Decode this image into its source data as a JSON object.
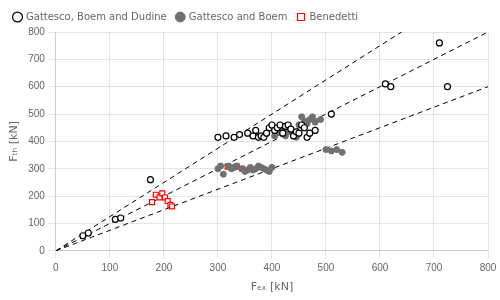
{
  "chart_data": {
    "type": "scatter",
    "title": "",
    "xlabel": "Fₑₓ [kN]",
    "ylabel": "Fₜₕ [kN]",
    "xlim": [
      0,
      800
    ],
    "ylim": [
      0,
      800
    ],
    "xticks": [
      0,
      100,
      200,
      300,
      400,
      500,
      600,
      700,
      800
    ],
    "yticks": [
      0,
      100,
      200,
      300,
      400,
      500,
      600,
      700,
      800
    ],
    "grid": true,
    "legend": "upper left",
    "series": [
      {
        "type": "line",
        "line_style": "dashed",
        "color": "#000000",
        "x": [
          0,
          800
        ],
        "values": [
          0,
          600
        ]
      },
      {
        "type": "line",
        "line_style": "dashed",
        "color": "#000000",
        "x": [
          0,
          800
        ],
        "values": [
          0,
          800
        ]
      },
      {
        "type": "line",
        "line_style": "dashed",
        "color": "#000000",
        "x": [
          0,
          640
        ],
        "values": [
          0,
          800
        ]
      },
      {
        "name": "Gattesco, Boem and Dudine",
        "type": "scatter",
        "marker": "open_circle",
        "color": "#000000",
        "x": [
          50,
          60,
          110,
          120,
          175,
          300,
          315,
          330,
          340,
          355,
          365,
          370,
          375,
          380,
          385,
          390,
          395,
          400,
          405,
          410,
          415,
          420,
          425,
          430,
          435,
          440,
          445,
          450,
          455,
          460,
          465,
          470,
          480,
          510,
          610,
          620,
          710,
          725
        ],
        "values": [
          55,
          65,
          115,
          120,
          260,
          415,
          420,
          415,
          425,
          430,
          420,
          440,
          415,
          420,
          415,
          430,
          450,
          460,
          440,
          450,
          460,
          430,
          455,
          460,
          445,
          420,
          435,
          430,
          460,
          450,
          415,
          430,
          440,
          500,
          610,
          600,
          760,
          600
        ]
      },
      {
        "name": "Gattesco and Boem",
        "type": "scatter",
        "marker": "circle",
        "color": "#707070",
        "x": [
          300,
          305,
          310,
          320,
          325,
          330,
          335,
          345,
          350,
          355,
          360,
          365,
          370,
          375,
          380,
          385,
          390,
          395,
          400,
          405,
          410,
          415,
          420,
          425,
          430,
          435,
          440,
          445,
          450,
          455,
          460,
          465,
          470,
          475,
          480,
          490,
          500,
          510,
          520,
          530
        ],
        "values": [
          300,
          310,
          280,
          310,
          300,
          305,
          310,
          300,
          290,
          295,
          305,
          295,
          300,
          310,
          305,
          300,
          295,
          290,
          305,
          420,
          430,
          440,
          445,
          420,
          435,
          440,
          420,
          415,
          460,
          490,
          475,
          465,
          480,
          490,
          470,
          480,
          370,
          365,
          370,
          360
        ]
      },
      {
        "name": "Benedetti",
        "type": "scatter",
        "marker": "open_square",
        "color": "#ff0000",
        "x": [
          178,
          185,
          192,
          197,
          202,
          207,
          212,
          215,
          318,
          335,
          345
        ],
        "values": [
          178,
          205,
          195,
          210,
          195,
          182,
          168,
          162,
          308,
          308,
          300
        ]
      }
    ]
  }
}
